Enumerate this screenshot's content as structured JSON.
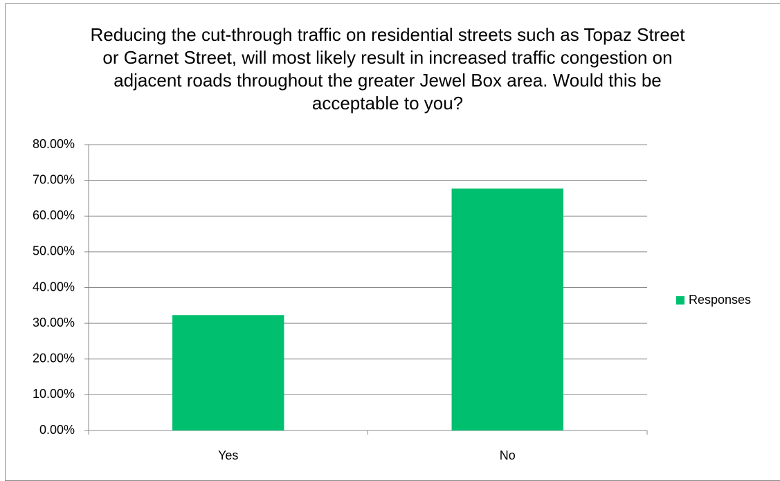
{
  "chart_data": {
    "type": "bar",
    "title": "Reducing the cut-through traffic on residential streets such as Topaz Street or Garnet Street, will most likely result in increased traffic congestion on adjacent roads throughout the greater Jewel Box area. Would this be acceptable to you?",
    "categories": [
      "Yes",
      "No"
    ],
    "series": [
      {
        "name": "Responses",
        "color": "#00bf6f",
        "values": [
          32.3,
          67.7
        ]
      }
    ],
    "ylim": [
      0,
      80
    ],
    "yticks": [
      {
        "value": 0,
        "label": "0.00%"
      },
      {
        "value": 10,
        "label": "10.00%"
      },
      {
        "value": 20,
        "label": "20.00%"
      },
      {
        "value": 30,
        "label": "30.00%"
      },
      {
        "value": 40,
        "label": "40.00%"
      },
      {
        "value": 50,
        "label": "50.00%"
      },
      {
        "value": 60,
        "label": "60.00%"
      },
      {
        "value": 70,
        "label": "70.00%"
      },
      {
        "value": 80,
        "label": "80.00%"
      }
    ],
    "grid": true,
    "legend": "right"
  }
}
